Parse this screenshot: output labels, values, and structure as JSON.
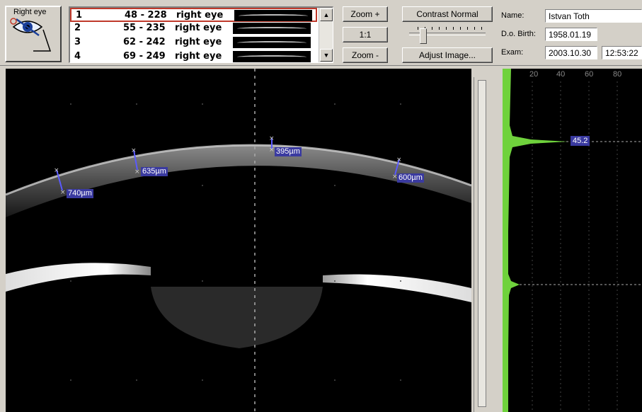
{
  "eye_selector": {
    "label": "Right eye",
    "icon": "eye-icon"
  },
  "scan_list": {
    "rows": [
      {
        "index": "1",
        "range": "48 - 228",
        "eye": "right eye",
        "selected": true
      },
      {
        "index": "2",
        "range": "55 - 235",
        "eye": "right eye",
        "selected": false
      },
      {
        "index": "3",
        "range": "62 - 242",
        "eye": "right eye",
        "selected": false
      },
      {
        "index": "4",
        "range": "69 - 249",
        "eye": "right eye",
        "selected": false
      }
    ],
    "scroll_up": "▲",
    "scroll_down": "▼"
  },
  "zoom": {
    "zoom_in": "Zoom +",
    "one_to_one": "1:1",
    "zoom_out": "Zoom -"
  },
  "contrast": {
    "label": "Contrast Normal",
    "adjust_label": "Adjust Image...",
    "level": 0.15
  },
  "patient": {
    "name_label": "Name:",
    "name": "Istvan Toth",
    "dob_label": "D.o. Birth:",
    "dob": "1958.01.19",
    "exam_label": "Exam:",
    "exam_date": "2003.10.30",
    "exam_time": "12:53:22"
  },
  "measurements": [
    {
      "value": "740µm"
    },
    {
      "value": "635µm"
    },
    {
      "value": "395µm"
    },
    {
      "value": "600µm"
    }
  ],
  "profile": {
    "ticks": [
      "20",
      "40",
      "60",
      "80"
    ],
    "peak_value": "45.2",
    "accent_color": "#6fd23c"
  }
}
